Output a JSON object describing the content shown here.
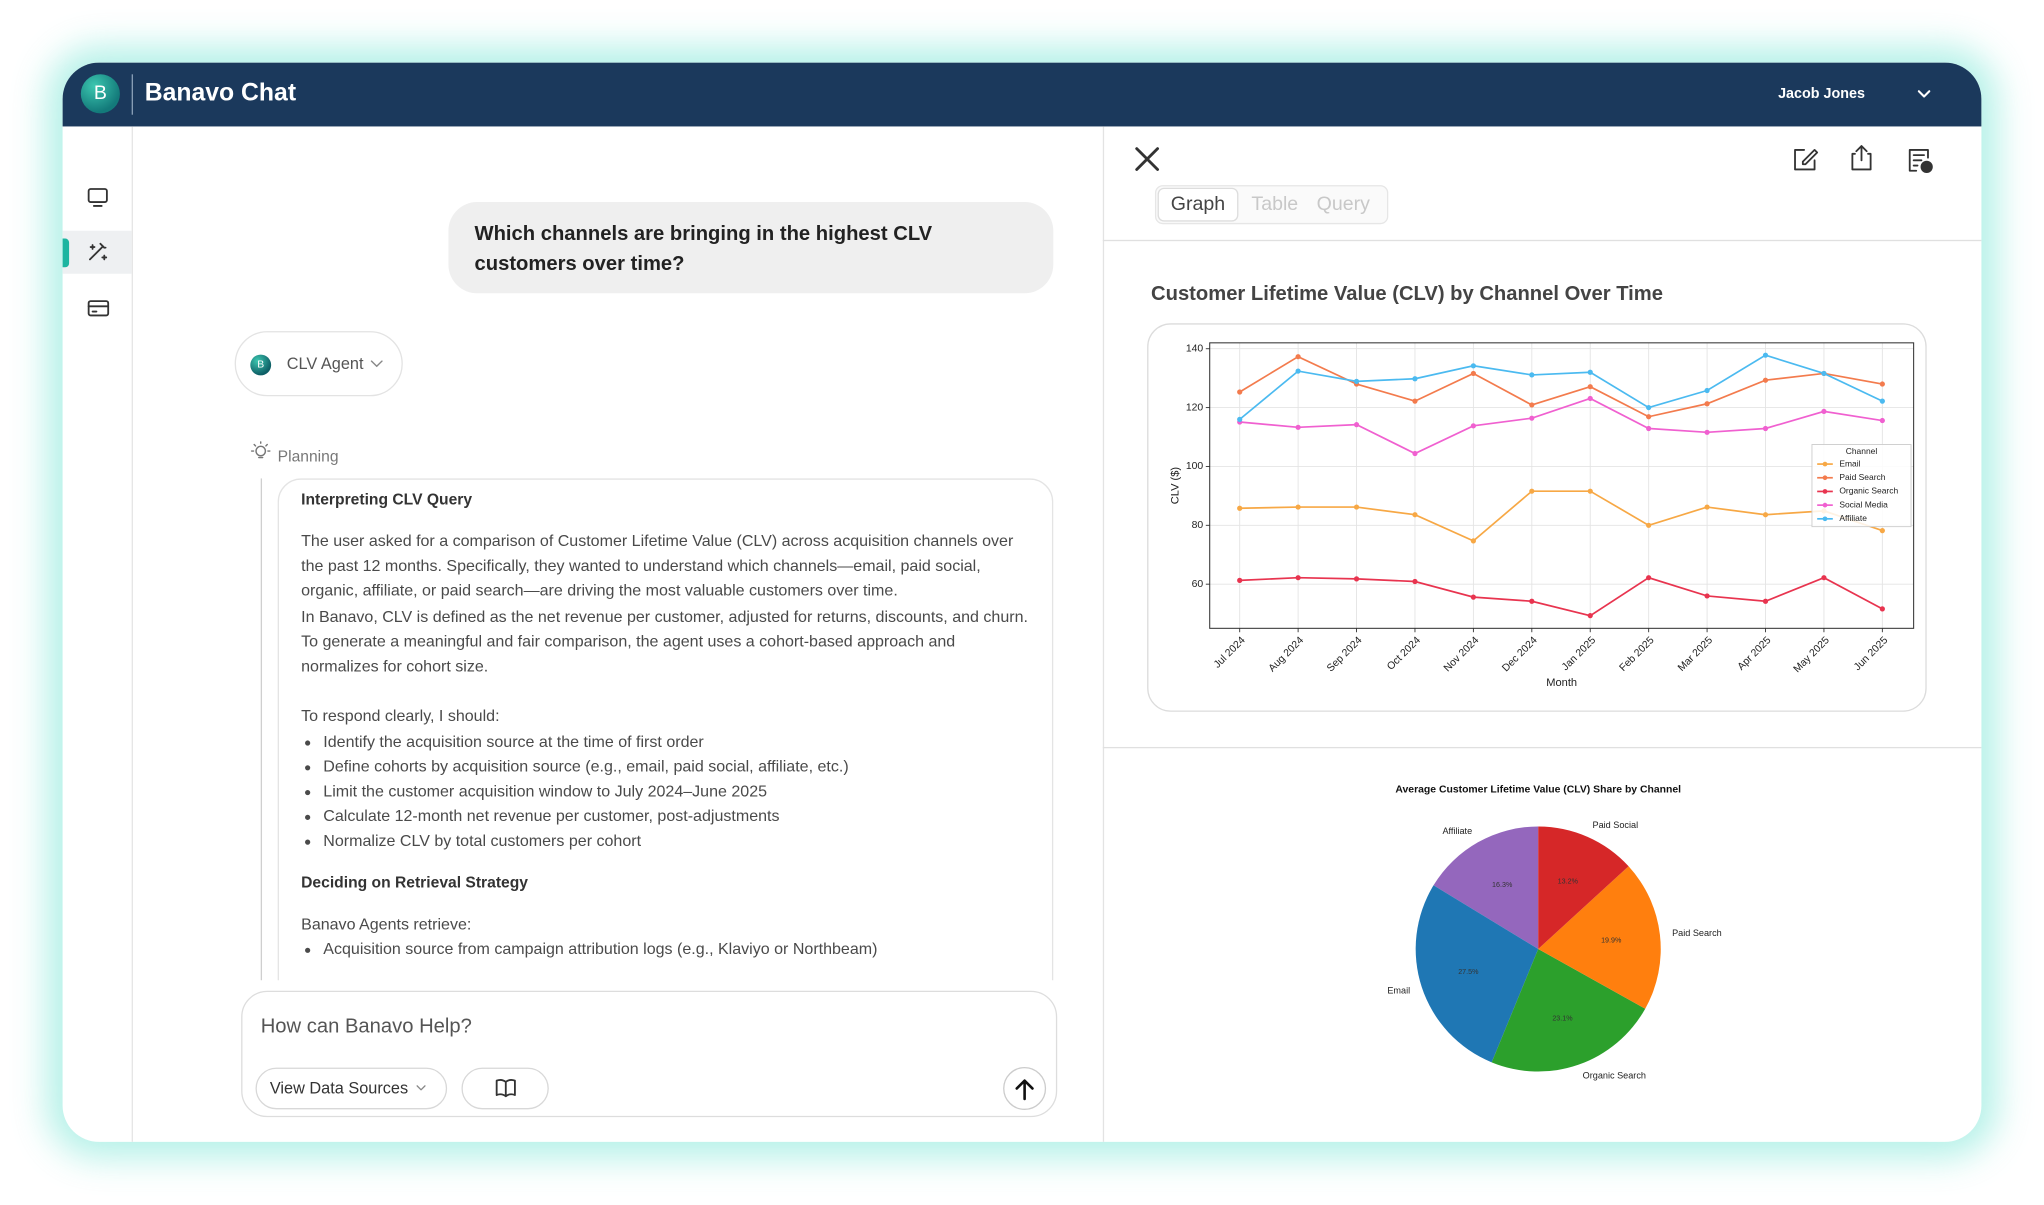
{
  "header": {
    "logo_letter": "B",
    "app_name": "Banavo Chat",
    "user_name": "Jacob Jones"
  },
  "chat": {
    "user_message": "Which channels are bringing in the highest CLV customers over time?",
    "agent": {
      "avatar_letter": "B",
      "name": "CLV Agent"
    },
    "planning_label": "Planning",
    "planning_card": {
      "heading1": "Interpreting CLV Query",
      "paragraphs": [
        "The user asked for a comparison of Customer Lifetime Value (CLV) across acquisition channels over the past 12 months. Specifically, they wanted to understand which channels—email, paid social, organic, affiliate, or paid search—are driving the most valuable customers over time.",
        "In Banavo, CLV is defined as the net revenue per customer, adjusted for returns, discounts, and churn. To generate a meaningful and fair comparison, the agent uses a cohort-based approach and normalizes for cohort size."
      ],
      "lead": "To respond clearly, I should:",
      "bullets": [
        "Identify the acquisition source at the time of first order",
        "Define cohorts by acquisition source (e.g., email, paid social, affiliate, etc.)",
        "Limit the customer acquisition window to July 2024–June 2025",
        "Calculate 12-month net revenue per customer, post-adjustments",
        "Normalize CLV by total customers per cohort"
      ],
      "heading2": "Deciding on Retrieval Strategy",
      "lead2": "Banavo Agents retrieve:",
      "bullets2": [
        "Acquisition source from campaign attribution logs (e.g., Klaviyo or Northbeam)"
      ]
    }
  },
  "composer": {
    "placeholder": "How can Banavo Help?",
    "data_sources_button": "View Data Sources"
  },
  "panel": {
    "tabs": [
      "Graph",
      "Table",
      "Query"
    ]
  },
  "chart_data": [
    {
      "type": "line",
      "title": "Customer Lifetime Value (CLV) by Channel Over Time",
      "x_label": "Month",
      "y_label": "CLV ($)",
      "categories": [
        "Jul 2024",
        "Aug 2024",
        "Sep 2024",
        "Oct 2024",
        "Nov 2024",
        "Dec 2024",
        "Jan 2025",
        "Feb 2025",
        "Mar 2025",
        "Apr 2025",
        "May 2025",
        "Jun 2025"
      ],
      "series": [
        {
          "name": "Email",
          "color": "#f7a845",
          "values": [
            85.8,
            86.2,
            86.2,
            83.6,
            74.7,
            91.6,
            91.6,
            80.0,
            86.2,
            83.6,
            84.9,
            78.2
          ]
        },
        {
          "name": "Paid Search",
          "color": "#f37b4d",
          "values": [
            125.3,
            137.3,
            128.0,
            122.2,
            131.6,
            120.9,
            127.1,
            116.9,
            121.3,
            129.3,
            131.6,
            128.0
          ]
        },
        {
          "name": "Organic Search",
          "color": "#e8344f",
          "values": [
            61.3,
            62.2,
            61.8,
            60.9,
            55.6,
            54.2,
            49.3,
            62.2,
            56.0,
            54.2,
            62.2,
            51.6
          ]
        },
        {
          "name": "Social Media",
          "color": "#f060d0",
          "values": [
            115.1,
            113.3,
            114.2,
            104.4,
            113.8,
            116.4,
            123.1,
            112.9,
            111.6,
            112.9,
            118.7,
            115.6
          ]
        },
        {
          "name": "Affiliate",
          "color": "#4bbaf0",
          "values": [
            116.0,
            132.4,
            128.9,
            129.8,
            134.2,
            131.1,
            132.0,
            120.0,
            125.8,
            137.8,
            131.6,
            122.2
          ]
        }
      ],
      "ylim": [
        45,
        142
      ],
      "yticks": [
        60,
        80,
        100,
        120,
        140
      ],
      "grid": true,
      "legend_title": "Channel",
      "legend": "center right"
    },
    {
      "type": "pie",
      "title": "Average Customer Lifetime Value (CLV) Share by Channel",
      "categories": [
        "Affiliate",
        "Email",
        "Organic Search",
        "Paid Search",
        "Paid Social"
      ],
      "values": [
        16.3,
        27.5,
        23.1,
        19.9,
        13.2
      ],
      "value_labels": [
        "16.3%",
        "27.5%",
        "23.1%",
        "19.9%",
        "13.2%"
      ],
      "colors": [
        "#9467bd",
        "#1f77b4",
        "#2ca02c",
        "#ff7f0e",
        "#d62728"
      ]
    }
  ]
}
